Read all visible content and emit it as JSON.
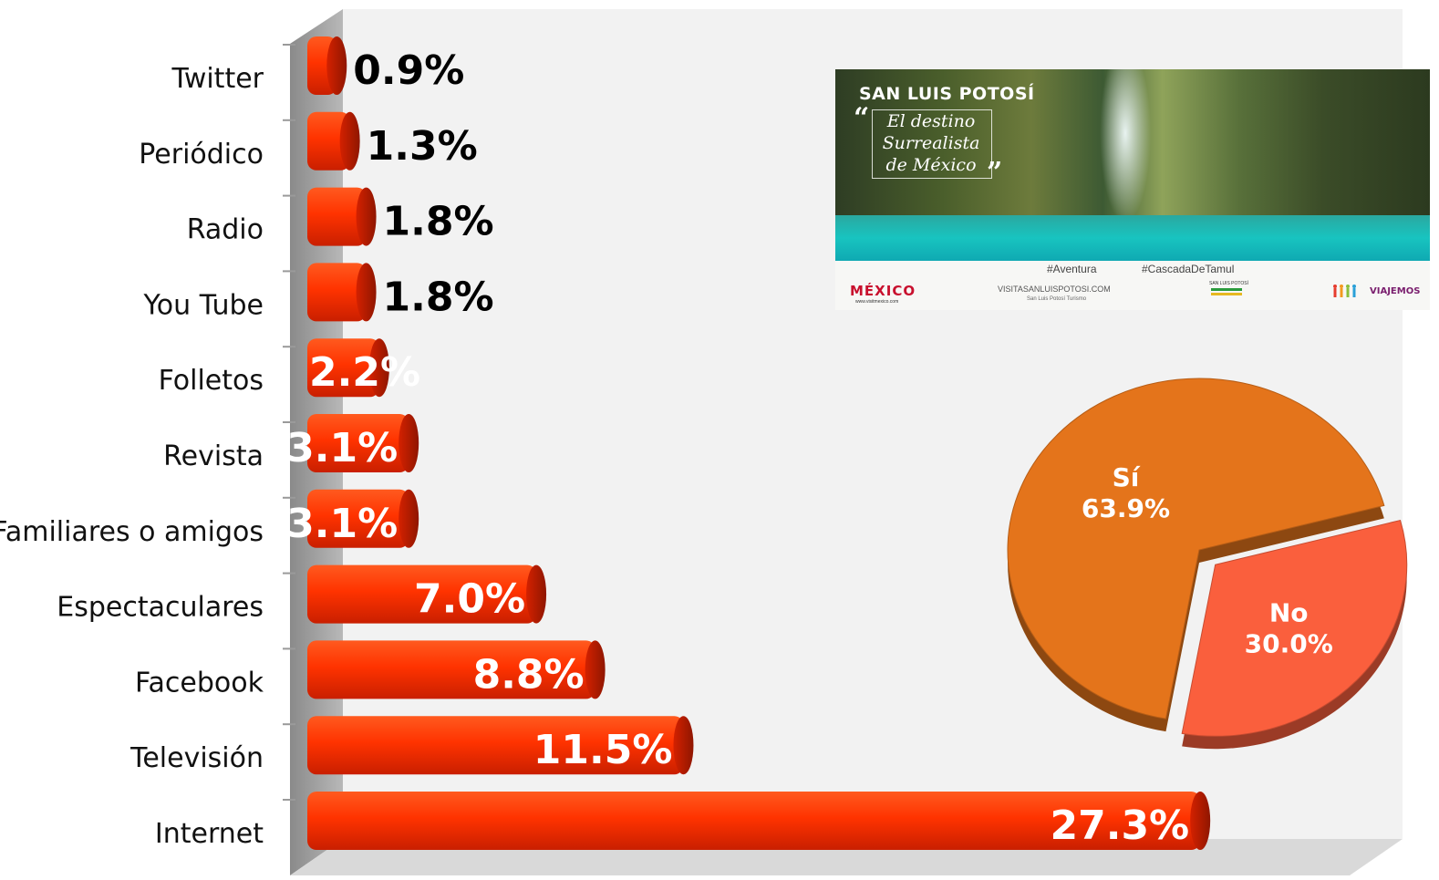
{
  "chart_data": [
    {
      "type": "bar",
      "orientation": "horizontal",
      "categories": [
        "Twitter",
        "Periódico",
        "Radio",
        "You Tube",
        "Folletos",
        "Revista",
        "Familiares o amigos",
        "Espectaculares",
        "Facebook",
        "Televisión",
        "Internet"
      ],
      "values": [
        0.9,
        1.3,
        1.8,
        1.8,
        2.2,
        3.1,
        3.1,
        7.0,
        8.8,
        11.5,
        27.3
      ],
      "value_labels": [
        "0.9%",
        "1.3%",
        "1.8%",
        "1.8%",
        "2.2%",
        "3.1%",
        "3.1%",
        "7.0%",
        "8.8%",
        "11.5%",
        "27.3%"
      ],
      "unit": "%",
      "xlim": [
        0,
        30
      ],
      "grid": false,
      "legend": "none",
      "bar_color": "#ff3300"
    },
    {
      "type": "pie",
      "categories": [
        "Sí",
        "No"
      ],
      "values": [
        63.9,
        30.0
      ],
      "value_labels": [
        "63.9%",
        "30.0%"
      ],
      "colors": [
        "#e4741b",
        "#fa5f3d"
      ],
      "exploded": "No",
      "legend": "none"
    }
  ],
  "banner": {
    "title": "SAN LUIS POTOSÍ",
    "quote_open": "“",
    "quote_close": "”",
    "tagline_1": "El destino",
    "tagline_2": "Surrealista",
    "tagline_3": "de México",
    "hashtag_1": "#Aventura",
    "hashtag_2": "#CascadaDeTamul",
    "mexico_logo": "MÉXICO",
    "mexico_site": "www.visitmexico.com",
    "website": "VISITASANLUISPOTOSI.COM",
    "website_sub": "San Luis Potosí Turismo",
    "slp_logo_text": "SAN LUIS POTOSÍ",
    "viajemos_logo": "VIAJEMOS"
  }
}
